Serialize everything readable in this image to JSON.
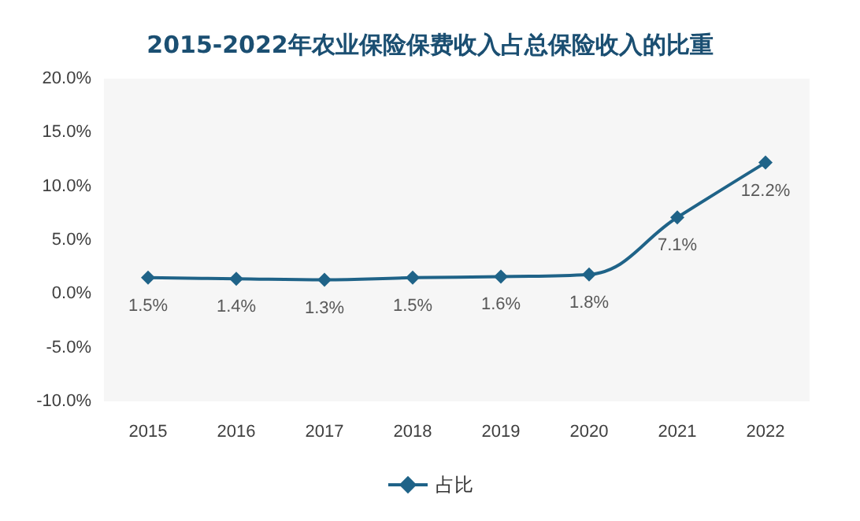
{
  "chart_data": {
    "type": "line",
    "title": "2015-2022年农业保险保费收入占总保险收入的比重",
    "categories": [
      "2015",
      "2016",
      "2017",
      "2018",
      "2019",
      "2020",
      "2021",
      "2022"
    ],
    "series": [
      {
        "name": "占比",
        "color": "#1f6388",
        "values": [
          1.5,
          1.4,
          1.3,
          1.5,
          1.6,
          1.8,
          7.1,
          12.2
        ],
        "value_labels": [
          "1.5%",
          "1.4%",
          "1.3%",
          "1.5%",
          "1.6%",
          "1.8%",
          "7.1%",
          "12.2%"
        ]
      }
    ],
    "ylim": [
      -10,
      20
    ],
    "yticks": [
      {
        "value": -10,
        "label": "-10.0%"
      },
      {
        "value": -5,
        "label": "-5.0%"
      },
      {
        "value": 0,
        "label": "0.0%"
      },
      {
        "value": 5,
        "label": "5.0%"
      },
      {
        "value": 10,
        "label": "10.0%"
      },
      {
        "value": 15,
        "label": "15.0%"
      },
      {
        "value": 20,
        "label": "20.0%"
      }
    ],
    "grid": false,
    "legend": "bottom",
    "marker": "diamond",
    "line_style": "solid"
  }
}
